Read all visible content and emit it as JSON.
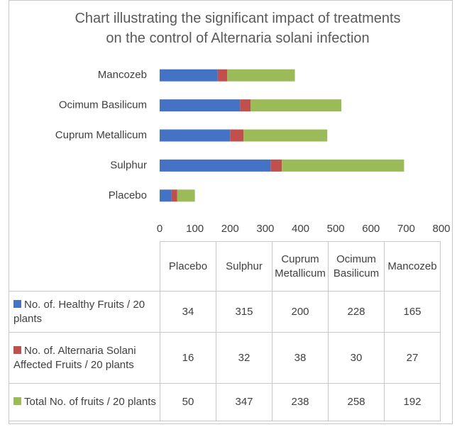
{
  "chart_data": {
    "type": "bar",
    "stacked": true,
    "title": "Chart illustrating the significant impact of treatments on the control of Alternaria solani infection",
    "categories": [
      "Placebo",
      "Sulphur",
      "Cuprum Metallicum",
      "Ocimum Basilicum",
      "Mancozeb"
    ],
    "series": [
      {
        "name": "No. of. Healthy Fruits / 20 plants",
        "color": "#4472c4",
        "values": [
          34,
          315,
          200,
          228,
          165
        ]
      },
      {
        "name": "No. of. Alternaria Solani Affected Fruits  / 20 plants",
        "color": "#c0504d",
        "values": [
          16,
          32,
          38,
          30,
          27
        ]
      },
      {
        "name": "Total No. of fruits  / 20 plants",
        "color": "#9bbb59",
        "values": [
          50,
          347,
          238,
          258,
          192
        ]
      }
    ],
    "xlim": [
      0,
      800
    ],
    "xticks": [
      0,
      100,
      200,
      300,
      400,
      500,
      600,
      700,
      800
    ],
    "grid": false
  }
}
